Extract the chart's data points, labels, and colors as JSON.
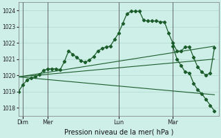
{
  "bg_color": "#ceeee8",
  "grid_color": "#b0d8cc",
  "line_color": "#1a5c2a",
  "xlabel": "Pression niveau de la mer( hPa )",
  "ylim": [
    1017.5,
    1024.5
  ],
  "yticks": [
    1018,
    1019,
    1020,
    1021,
    1022,
    1023,
    1024
  ],
  "xlim": [
    0,
    24
  ],
  "day_labels": [
    "Dim",
    "Mer",
    "Lun",
    "Mar"
  ],
  "day_positions": [
    0.5,
    3.5,
    12.0,
    18.5
  ],
  "vline_positions": [
    0.5,
    3.5,
    12.0,
    18.5
  ],
  "main_x": [
    0,
    0.5,
    1,
    1.5,
    2,
    2.5,
    3,
    3.5,
    4,
    4.5,
    5,
    5.5,
    6,
    6.5,
    7,
    7.5,
    8,
    8.5,
    9,
    9.5,
    10,
    10.5,
    11,
    11.5,
    12,
    12.5,
    13,
    13.5,
    14,
    14.5,
    15,
    15.5,
    16,
    16.5,
    17,
    17.5,
    18,
    18.5,
    19,
    19.5,
    20,
    20.5,
    21,
    21.5,
    22,
    22.5,
    23,
    23.5
  ],
  "main_y": [
    1019.0,
    1019.4,
    1019.7,
    1019.85,
    1019.9,
    1020.05,
    1020.3,
    1020.4,
    1020.4,
    1020.4,
    1020.35,
    1020.85,
    1021.5,
    1021.3,
    1021.1,
    1020.9,
    1020.8,
    1020.95,
    1021.15,
    1021.5,
    1021.65,
    1021.75,
    1021.8,
    1022.2,
    1022.6,
    1023.2,
    1023.8,
    1023.95,
    1023.95,
    1023.95,
    1023.4,
    1023.35,
    1023.35,
    1023.35,
    1023.3,
    1023.3,
    1022.6,
    1022.0,
    1021.5,
    1021.5,
    1021.75,
    1021.75,
    1021.1,
    1020.5,
    1020.2,
    1020.0,
    1020.15,
    1021.7
  ],
  "fan_line1_x": [
    0,
    23.5
  ],
  "fan_line1_y": [
    1019.9,
    1018.8
  ],
  "fan_line2_x": [
    0,
    23.5
  ],
  "fan_line2_y": [
    1019.9,
    1021.0
  ],
  "fan_line3_x": [
    0,
    23.5
  ],
  "fan_line3_y": [
    1019.9,
    1021.8
  ],
  "right_x": [
    18.5,
    19,
    19.5,
    20,
    20.5,
    21,
    21.5,
    22,
    22.5,
    23,
    23.5
  ],
  "right_y": [
    1021.8,
    1021.0,
    1020.6,
    1020.2,
    1020.15,
    1019.5,
    1019.1,
    1018.85,
    1018.5,
    1018.15,
    1017.8
  ]
}
